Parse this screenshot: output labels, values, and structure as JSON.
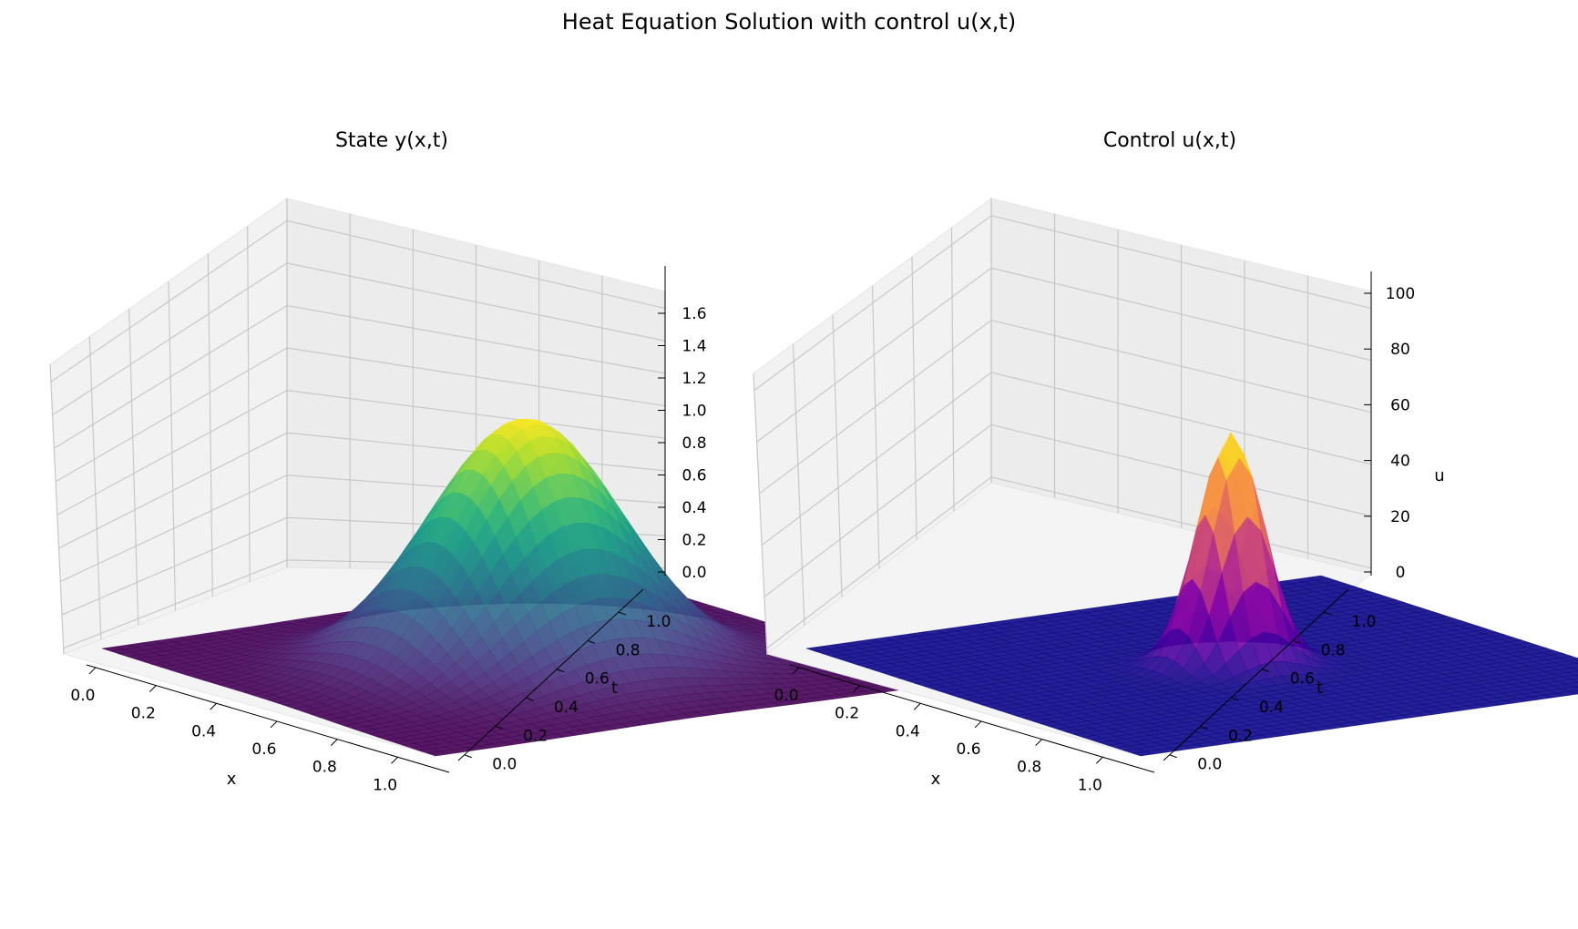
{
  "figure": {
    "suptitle": "Heat Equation Solution with control u(x,t)"
  },
  "chart_data": [
    {
      "type": "surface3d",
      "title": "State y(x,t)",
      "xlabel": "x",
      "ylabel": "t",
      "zlabel": "",
      "x_ticks": [
        "0.0",
        "0.2",
        "0.4",
        "0.6",
        "0.8",
        "1.0"
      ],
      "t_ticks": [
        "0.0",
        "0.2",
        "0.4",
        "0.6",
        "0.8",
        "1.0"
      ],
      "z_ticks": [
        "0.0",
        "0.2",
        "0.4",
        "0.6",
        "0.8",
        "1.0",
        "1.2",
        "1.4",
        "1.6"
      ],
      "xlim": [
        0,
        1
      ],
      "tlim": [
        0,
        1
      ],
      "zlim": [
        0,
        1.72
      ],
      "colormap": "viridis",
      "peak": {
        "x": 0.5,
        "t": 0.5,
        "z": 1.57
      },
      "grid": true
    },
    {
      "type": "surface3d",
      "title": "Control u(x,t)",
      "xlabel": "x",
      "ylabel": "t",
      "zlabel": "u",
      "x_ticks": [
        "0.0",
        "0.2",
        "0.4",
        "0.6",
        "0.8",
        "1.0"
      ],
      "t_ticks": [
        "0.0",
        "0.2",
        "0.4",
        "0.6",
        "0.8",
        "1.0"
      ],
      "z_ticks": [
        "0",
        "20",
        "40",
        "60",
        "80",
        "100"
      ],
      "xlim": [
        0,
        1
      ],
      "tlim": [
        0,
        1
      ],
      "zlim": [
        0,
        100
      ],
      "colormap": "plasma",
      "peak": {
        "x": 0.5,
        "t": 0.5,
        "z": 88
      },
      "grid": true
    }
  ]
}
